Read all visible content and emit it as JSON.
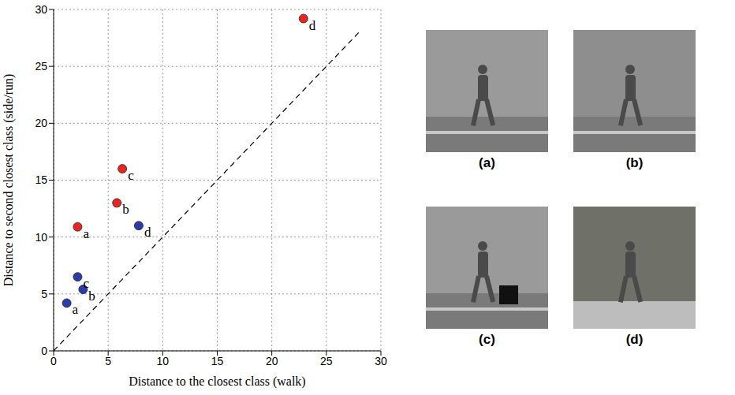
{
  "chart_data": {
    "type": "scatter",
    "xlabel": "Distance to the closest class (walk)",
    "ylabel": "Distance to second closest class (side/run)",
    "xlim": [
      0,
      30
    ],
    "ylim": [
      0,
      30
    ],
    "xticks": [
      0,
      5,
      10,
      15,
      20,
      25,
      30
    ],
    "yticks": [
      0,
      5,
      10,
      15,
      20,
      25,
      30
    ],
    "grid": true,
    "series": [
      {
        "type": "scatter",
        "color": "#e8251f",
        "marker": "circle",
        "x": [
          2.2,
          5.8,
          6.3,
          22.9
        ],
        "values": [
          10.9,
          13,
          16,
          29.2
        ],
        "point_labels": [
          "a",
          "b",
          "c",
          "d"
        ]
      },
      {
        "type": "scatter",
        "color": "#2b3ba8",
        "marker": "circle",
        "x": [
          1.2,
          2.7,
          2.2,
          7.8
        ],
        "values": [
          4.2,
          5.4,
          6.5,
          11
        ],
        "point_labels": [
          "a",
          "b",
          "c",
          "d"
        ]
      },
      {
        "type": "line",
        "color": "#000000",
        "line_style": "dashed",
        "x": [
          0,
          28
        ],
        "values": [
          0,
          28
        ]
      }
    ]
  },
  "image_panels": {
    "labels": [
      "(a)",
      "(b)",
      "(c)",
      "(d)"
    ]
  }
}
